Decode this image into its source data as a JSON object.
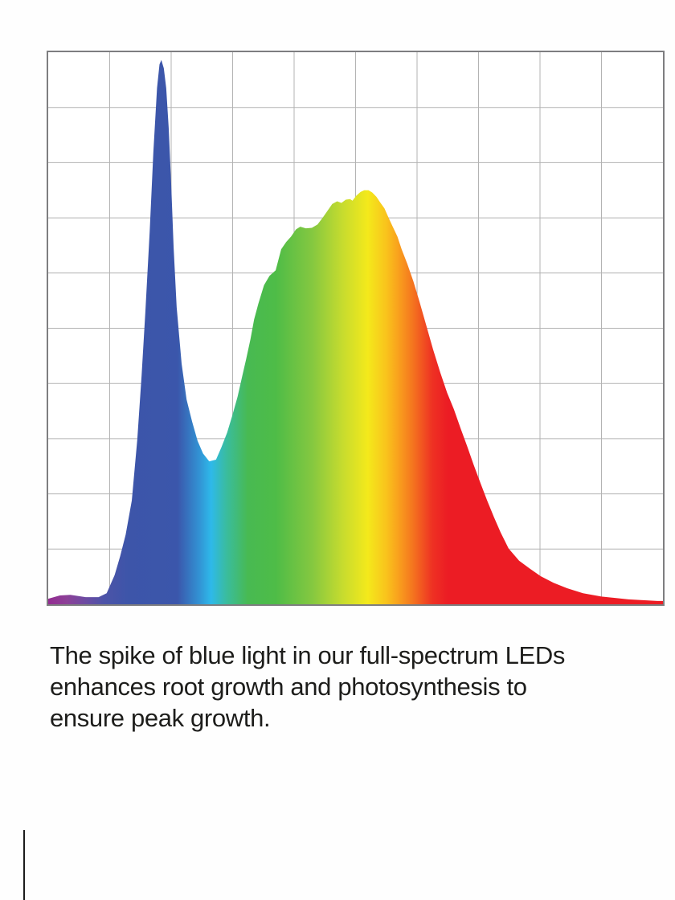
{
  "caption": {
    "lines": [
      "The spike of blue light in our full-spectrum LEDs",
      "enhances root growth and photosynthesis to",
      "ensure peak growth."
    ],
    "full_text": "The spike of blue light in our full-spectrum LEDs enhances root growth and photosynthesis to ensure peak growth.",
    "text_color": "#1d1d1b"
  },
  "chart_data": {
    "type": "area",
    "title": "",
    "xlabel": "",
    "ylabel": "",
    "axis_tick_labels_visible": false,
    "legend": null,
    "description": "Full-spectrum LED spectral power distribution: sharp blue spike on the left, cyan valley, broad green-to-yellow hump peaking in yellow, long red decay tail; area filled with a rainbow spectrum gradient.",
    "x_unit": "percent of x-range (no wavelength labels shown)",
    "y_unit": "percent relative intensity (no tick labels shown)",
    "xlim": [
      0,
      100
    ],
    "ylim": [
      0,
      100
    ],
    "grid": {
      "cols": 10,
      "rows": 10,
      "line_color": "#b3b3b3",
      "border_color": "#7e7e80",
      "background": "#ffffff"
    },
    "points": [
      [
        0.0,
        1.0
      ],
      [
        1.9,
        1.6
      ],
      [
        3.6,
        1.7
      ],
      [
        6.1,
        1.3
      ],
      [
        8.2,
        1.3
      ],
      [
        9.5,
        2.0
      ],
      [
        10.8,
        5.3
      ],
      [
        11.7,
        8.7
      ],
      [
        12.6,
        12.6
      ],
      [
        13.6,
        18.8
      ],
      [
        14.5,
        29.9
      ],
      [
        15.2,
        41.5
      ],
      [
        15.8,
        53.0
      ],
      [
        16.5,
        67.5
      ],
      [
        17.1,
        81.9
      ],
      [
        17.7,
        93.5
      ],
      [
        18.1,
        97.8
      ],
      [
        18.4,
        98.6
      ],
      [
        18.8,
        97.1
      ],
      [
        19.2,
        93.5
      ],
      [
        19.6,
        86.3
      ],
      [
        20.0,
        76.2
      ],
      [
        20.4,
        64.6
      ],
      [
        20.9,
        53.8
      ],
      [
        21.7,
        43.6
      ],
      [
        22.5,
        37.1
      ],
      [
        23.4,
        33.1
      ],
      [
        24.3,
        29.6
      ],
      [
        25.2,
        27.3
      ],
      [
        26.2,
        25.9
      ],
      [
        27.3,
        26.2
      ],
      [
        28.2,
        28.5
      ],
      [
        29.1,
        31.1
      ],
      [
        29.9,
        34.0
      ],
      [
        30.8,
        37.6
      ],
      [
        31.6,
        41.5
      ],
      [
        32.2,
        44.4
      ],
      [
        32.9,
        48.0
      ],
      [
        33.5,
        51.6
      ],
      [
        34.2,
        54.5
      ],
      [
        35.1,
        57.8
      ],
      [
        36.0,
        59.5
      ],
      [
        37.0,
        60.5
      ],
      [
        37.9,
        64.3
      ],
      [
        38.7,
        65.6
      ],
      [
        39.5,
        66.6
      ],
      [
        40.3,
        67.9
      ],
      [
        41.0,
        68.4
      ],
      [
        41.9,
        68.1
      ],
      [
        42.9,
        68.2
      ],
      [
        43.8,
        68.8
      ],
      [
        44.7,
        70.1
      ],
      [
        45.5,
        71.4
      ],
      [
        46.2,
        72.5
      ],
      [
        47.0,
        73.0
      ],
      [
        47.7,
        72.7
      ],
      [
        48.4,
        73.3
      ],
      [
        49.1,
        73.4
      ],
      [
        49.5,
        73.1
      ],
      [
        50.1,
        74.0
      ],
      [
        50.8,
        74.7
      ],
      [
        51.4,
        75.0
      ],
      [
        52.1,
        75.0
      ],
      [
        52.7,
        74.6
      ],
      [
        53.4,
        73.8
      ],
      [
        54.0,
        72.8
      ],
      [
        54.7,
        71.7
      ],
      [
        55.3,
        70.2
      ],
      [
        56.0,
        68.5
      ],
      [
        56.8,
        66.6
      ],
      [
        57.5,
        64.3
      ],
      [
        58.4,
        61.7
      ],
      [
        59.4,
        58.5
      ],
      [
        60.4,
        54.8
      ],
      [
        61.4,
        50.9
      ],
      [
        62.6,
        46.2
      ],
      [
        63.8,
        41.9
      ],
      [
        64.9,
        38.3
      ],
      [
        66.0,
        35.3
      ],
      [
        67.1,
        31.8
      ],
      [
        68.2,
        28.5
      ],
      [
        69.2,
        25.3
      ],
      [
        70.4,
        21.7
      ],
      [
        71.4,
        18.8
      ],
      [
        72.5,
        15.8
      ],
      [
        73.6,
        13.0
      ],
      [
        74.9,
        10.1
      ],
      [
        76.6,
        7.9
      ],
      [
        78.3,
        6.5
      ],
      [
        80.1,
        5.1
      ],
      [
        82.2,
        3.9
      ],
      [
        84.4,
        2.9
      ],
      [
        87.0,
        2.0
      ],
      [
        90.0,
        1.4
      ],
      [
        94.4,
        0.9
      ],
      [
        99.1,
        0.6
      ],
      [
        100.0,
        0.6
      ]
    ],
    "gradient_stops": [
      [
        0.0,
        "#942c92"
      ],
      [
        3.0,
        "#8c4097"
      ],
      [
        6.0,
        "#6d4ba2"
      ],
      [
        9.0,
        "#4d53a8"
      ],
      [
        13.0,
        "#3d55a9"
      ],
      [
        21.0,
        "#3b56ab"
      ],
      [
        24.5,
        "#3291d3"
      ],
      [
        26.5,
        "#2eb9ea"
      ],
      [
        29.0,
        "#3abc9e"
      ],
      [
        32.5,
        "#48ba52"
      ],
      [
        37.0,
        "#4ebc47"
      ],
      [
        43.0,
        "#85c840"
      ],
      [
        48.0,
        "#c8dc2e"
      ],
      [
        52.0,
        "#f4e91b"
      ],
      [
        55.0,
        "#f9c31c"
      ],
      [
        57.0,
        "#f9a01d"
      ],
      [
        59.5,
        "#f4711f"
      ],
      [
        62.5,
        "#ee3123"
      ],
      [
        65.0,
        "#ec1c24"
      ],
      [
        100.0,
        "#ec1c24"
      ]
    ]
  },
  "partial_next_element": {
    "visible": true,
    "color": "#1c1c1c"
  }
}
